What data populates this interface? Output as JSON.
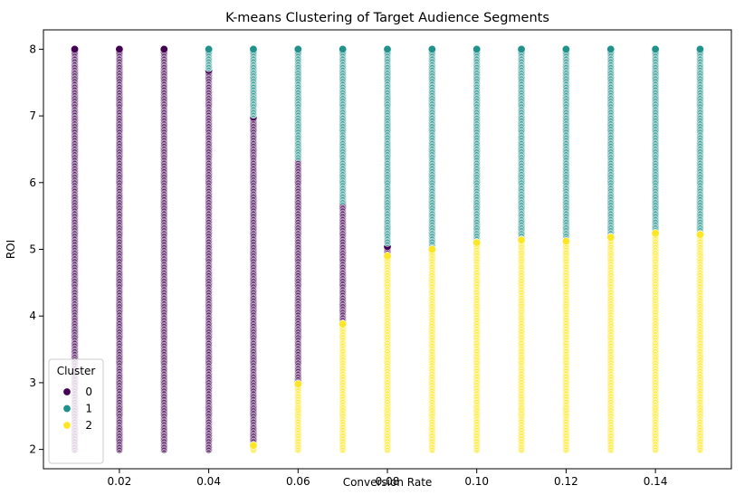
{
  "chart_data": {
    "type": "scatter",
    "title": "K-means Clustering of Target Audience Segments",
    "xlabel": "Conversion Rate",
    "ylabel": "ROI",
    "xlim": [
      0.003,
      0.157
    ],
    "ylim": [
      1.71,
      8.29
    ],
    "xticks": [
      0.02,
      0.04,
      0.06,
      0.08,
      0.1,
      0.12,
      0.14
    ],
    "xtick_labels": [
      "0.02",
      "0.04",
      "0.06",
      "0.08",
      "0.10",
      "0.12",
      "0.14"
    ],
    "yticks": [
      2,
      3,
      4,
      5,
      6,
      7,
      8
    ],
    "ytick_labels": [
      "2",
      "3",
      "4",
      "5",
      "6",
      "7",
      "8"
    ],
    "grid": false,
    "legend": {
      "title": "Cluster",
      "placement": "lower-left",
      "entries": [
        {
          "label": "0",
          "color": "#440154"
        },
        {
          "label": "1",
          "color": "#21918c"
        },
        {
          "label": "2",
          "color": "#fde725"
        }
      ]
    },
    "x_values": [
      0.01,
      0.02,
      0.03,
      0.04,
      0.05,
      0.06,
      0.07,
      0.08,
      0.09,
      0.1,
      0.11,
      0.12,
      0.13,
      0.14,
      0.15
    ],
    "roi_range": [
      2.0,
      8.0
    ],
    "roi_step": 0.02,
    "series": [
      {
        "name": "0",
        "color": "#440154",
        "segments": [
          {
            "x": 0.01,
            "roi_min": 2.0,
            "roi_max": 8.0
          },
          {
            "x": 0.02,
            "roi_min": 2.0,
            "roi_max": 8.0
          },
          {
            "x": 0.03,
            "roi_min": 2.0,
            "roi_max": 8.0
          },
          {
            "x": 0.04,
            "roi_min": 2.0,
            "roi_max": 7.68
          },
          {
            "x": 0.05,
            "roi_min": 2.08,
            "roi_max": 6.98
          },
          {
            "x": 0.06,
            "roi_min": 3.0,
            "roi_max": 6.36
          },
          {
            "x": 0.07,
            "roi_min": 3.9,
            "roi_max": 5.7
          },
          {
            "x": 0.08,
            "roi_min": 4.92,
            "roi_max": 5.04
          }
        ]
      },
      {
        "name": "1",
        "color": "#21918c",
        "segments": [
          {
            "x": 0.04,
            "roi_min": 7.72,
            "roi_max": 8.0
          },
          {
            "x": 0.05,
            "roi_min": 7.02,
            "roi_max": 8.0
          },
          {
            "x": 0.06,
            "roi_min": 6.38,
            "roi_max": 8.0
          },
          {
            "x": 0.07,
            "roi_min": 5.72,
            "roi_max": 8.0
          },
          {
            "x": 0.08,
            "roi_min": 5.1,
            "roi_max": 8.0
          },
          {
            "x": 0.09,
            "roi_min": 5.02,
            "roi_max": 8.0
          },
          {
            "x": 0.1,
            "roi_min": 5.12,
            "roi_max": 8.0
          },
          {
            "x": 0.11,
            "roi_min": 5.16,
            "roi_max": 8.0
          },
          {
            "x": 0.12,
            "roi_min": 5.14,
            "roi_max": 8.0
          },
          {
            "x": 0.13,
            "roi_min": 5.2,
            "roi_max": 8.0
          },
          {
            "x": 0.14,
            "roi_min": 5.26,
            "roi_max": 8.0
          },
          {
            "x": 0.15,
            "roi_min": 5.24,
            "roi_max": 8.0
          }
        ]
      },
      {
        "name": "2",
        "color": "#fde725",
        "segments": [
          {
            "x": 0.05,
            "roi_min": 2.0,
            "roi_max": 2.06
          },
          {
            "x": 0.06,
            "roi_min": 2.0,
            "roi_max": 2.98
          },
          {
            "x": 0.07,
            "roi_min": 2.0,
            "roi_max": 3.88
          },
          {
            "x": 0.08,
            "roi_min": 2.0,
            "roi_max": 4.9
          },
          {
            "x": 0.09,
            "roi_min": 2.0,
            "roi_max": 5.0
          },
          {
            "x": 0.1,
            "roi_min": 2.0,
            "roi_max": 5.1
          },
          {
            "x": 0.11,
            "roi_min": 2.0,
            "roi_max": 5.14
          },
          {
            "x": 0.12,
            "roi_min": 2.0,
            "roi_max": 5.12
          },
          {
            "x": 0.13,
            "roi_min": 2.0,
            "roi_max": 5.18
          },
          {
            "x": 0.14,
            "roi_min": 2.0,
            "roi_max": 5.24
          },
          {
            "x": 0.15,
            "roi_min": 2.0,
            "roi_max": 5.22
          }
        ]
      }
    ]
  }
}
